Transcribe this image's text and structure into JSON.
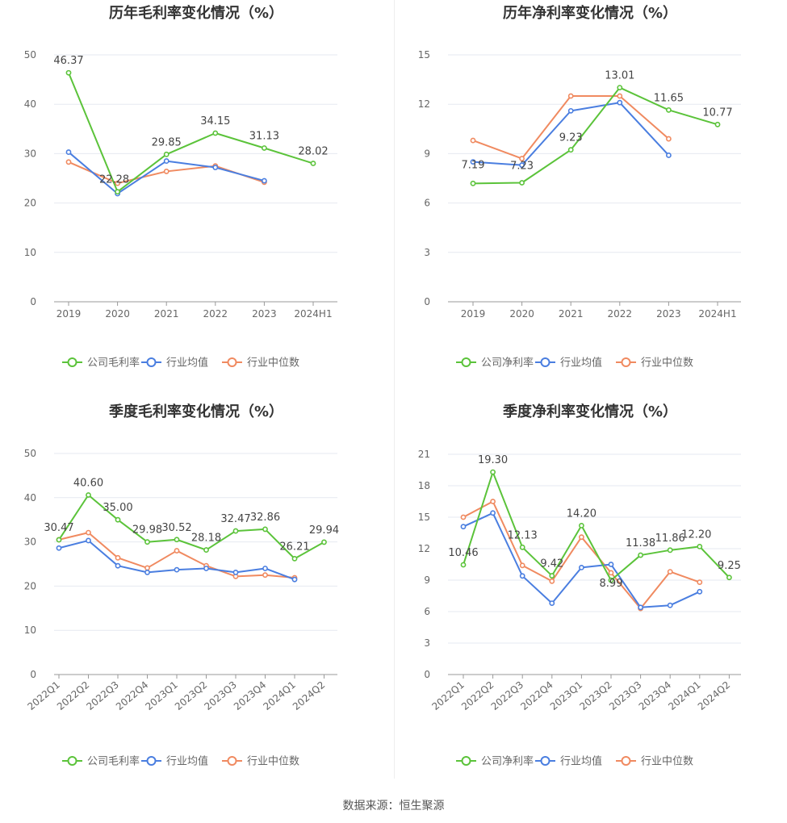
{
  "source": "数据来源：恒生聚源",
  "colors": {
    "company": "#5bc33a",
    "avg": "#4a7ee0",
    "median": "#f08a60",
    "grid": "#e6e9f0",
    "axis": "#999999",
    "text": "#666666",
    "label": "#444444",
    "title": "#333333"
  },
  "chart_data": [
    {
      "type": "line",
      "title": "历年毛利率变化情况（%）",
      "categories": [
        "2019",
        "2020",
        "2021",
        "2022",
        "2023",
        "2024H1"
      ],
      "ylim": [
        0,
        50
      ],
      "yticks": [
        0,
        10,
        20,
        30,
        40,
        50
      ],
      "grid": true,
      "legend_position": "bottom",
      "series": [
        {
          "name": "公司毛利率",
          "color": "#5bc33a",
          "values": [
            46.37,
            22.28,
            29.85,
            34.15,
            31.13,
            28.02
          ],
          "labels": [
            "46.37",
            "22.28",
            "29.85",
            "34.15",
            "31.13",
            "28.02"
          ]
        },
        {
          "name": "行业均值",
          "color": "#4a7ee0",
          "values": [
            30.3,
            21.9,
            28.5,
            27.2,
            24.5,
            null
          ]
        },
        {
          "name": "行业中位数",
          "color": "#f08a60",
          "values": [
            28.3,
            24.0,
            26.4,
            27.5,
            24.2,
            null
          ]
        }
      ]
    },
    {
      "type": "line",
      "title": "历年净利率变化情况（%）",
      "categories": [
        "2019",
        "2020",
        "2021",
        "2022",
        "2023",
        "2024H1"
      ],
      "ylim": [
        0,
        15
      ],
      "yticks": [
        0,
        3,
        6,
        9,
        12,
        15
      ],
      "grid": true,
      "legend_position": "bottom",
      "series": [
        {
          "name": "公司净利率",
          "color": "#5bc33a",
          "values": [
            7.19,
            7.23,
            9.23,
            13.01,
            11.65,
            10.77
          ],
          "labels": [
            "7.19",
            "7.23",
            "9.23",
            "13.01",
            "11.65",
            "10.77"
          ]
        },
        {
          "name": "行业均值",
          "color": "#4a7ee0",
          "values": [
            8.5,
            8.3,
            11.6,
            12.1,
            8.9,
            null
          ]
        },
        {
          "name": "行业中位数",
          "color": "#f08a60",
          "values": [
            9.8,
            8.7,
            12.5,
            12.5,
            9.9,
            null
          ]
        }
      ]
    },
    {
      "type": "line",
      "title": "季度毛利率变化情况（%）",
      "categories": [
        "2022Q1",
        "2022Q2",
        "2022Q3",
        "2022Q4",
        "2023Q1",
        "2023Q2",
        "2023Q3",
        "2023Q4",
        "2024Q1",
        "2024Q2"
      ],
      "ylim": [
        0,
        50
      ],
      "yticks": [
        0,
        10,
        20,
        30,
        40,
        50
      ],
      "grid": true,
      "legend_position": "bottom",
      "series": [
        {
          "name": "公司毛利率",
          "color": "#5bc33a",
          "values": [
            30.47,
            40.6,
            35.0,
            29.98,
            30.52,
            28.18,
            32.47,
            32.86,
            26.21,
            29.94
          ],
          "labels": [
            "30.47",
            "40.60",
            "35.00",
            "29.98",
            "30.52",
            "28.18",
            "32.47",
            "32.86",
            "26.21",
            "29.94"
          ]
        },
        {
          "name": "行业均值",
          "color": "#4a7ee0",
          "values": [
            28.6,
            30.3,
            24.6,
            23.1,
            23.7,
            24.0,
            23.1,
            24.0,
            21.5,
            null
          ]
        },
        {
          "name": "行业中位数",
          "color": "#f08a60",
          "values": [
            30.5,
            32.1,
            26.4,
            24.1,
            28.0,
            24.6,
            22.2,
            22.5,
            21.9,
            null
          ]
        }
      ]
    },
    {
      "type": "line",
      "title": "季度净利率变化情况（%）",
      "categories": [
        "2022Q1",
        "2022Q2",
        "2022Q3",
        "2022Q4",
        "2023Q1",
        "2023Q2",
        "2023Q3",
        "2023Q4",
        "2024Q1",
        "2024Q2"
      ],
      "ylim": [
        0,
        21
      ],
      "yticks": [
        0,
        3,
        6,
        9,
        12,
        15,
        18,
        21
      ],
      "grid": true,
      "legend_position": "bottom",
      "series": [
        {
          "name": "公司净利率",
          "color": "#5bc33a",
          "values": [
            10.46,
            19.3,
            12.13,
            9.42,
            14.2,
            8.99,
            11.38,
            11.86,
            12.2,
            9.25
          ],
          "labels": [
            "10.46",
            "19.30",
            "12.13",
            "9.42",
            "14.20",
            "8.99",
            "11.38",
            "11.86",
            "12.20",
            "9.25"
          ]
        },
        {
          "name": "行业均值",
          "color": "#4a7ee0",
          "values": [
            14.1,
            15.4,
            9.4,
            6.8,
            10.2,
            10.5,
            6.4,
            6.6,
            7.9,
            null
          ]
        },
        {
          "name": "行业中位数",
          "color": "#f08a60",
          "values": [
            15.0,
            16.5,
            10.4,
            8.9,
            13.1,
            9.7,
            6.3,
            9.8,
            8.8,
            null
          ]
        }
      ]
    }
  ]
}
